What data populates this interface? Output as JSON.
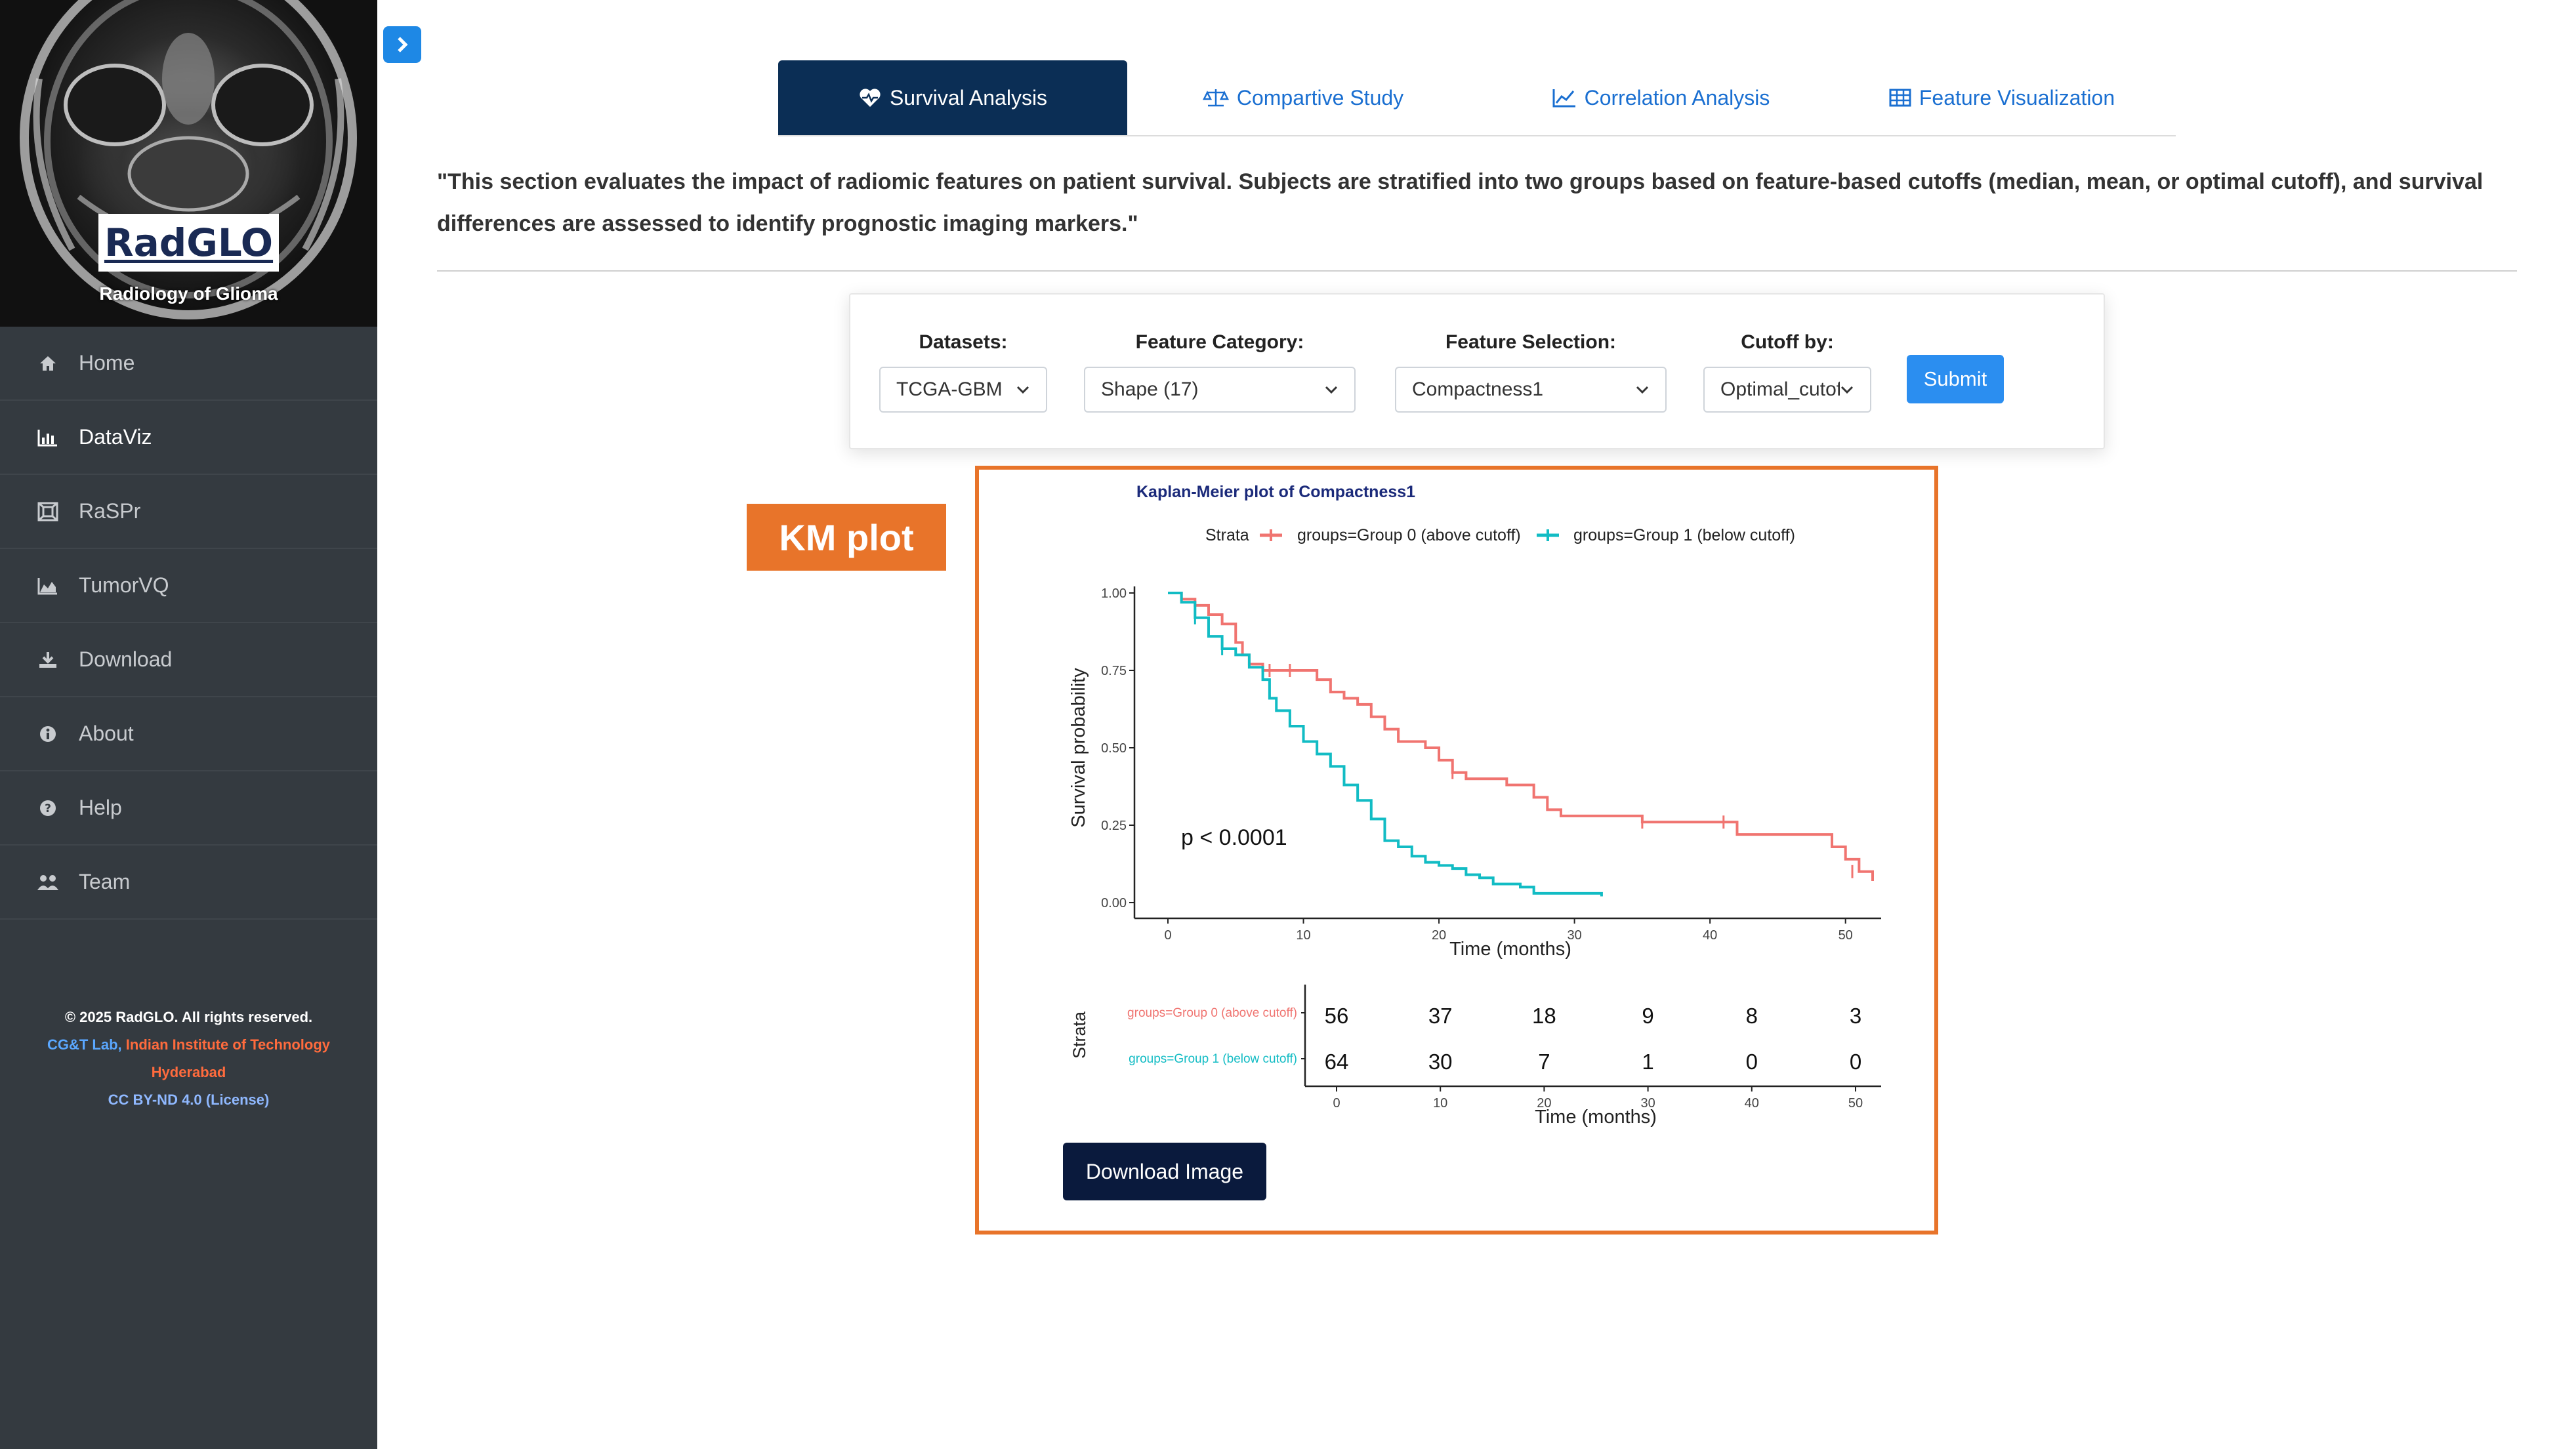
{
  "sidebar": {
    "logo": "RadGLO",
    "logo_subtitle": "Radiology of Glioma",
    "items": [
      {
        "label": "Home",
        "icon": "home-icon"
      },
      {
        "label": "DataViz",
        "icon": "bar-chart-icon",
        "active": true
      },
      {
        "label": "RaSPr",
        "icon": "grid-icon"
      },
      {
        "label": "TumorVQ",
        "icon": "area-chart-icon"
      },
      {
        "label": "Download",
        "icon": "download-icon"
      },
      {
        "label": "About",
        "icon": "info-icon"
      },
      {
        "label": "Help",
        "icon": "help-icon"
      },
      {
        "label": "Team",
        "icon": "team-icon"
      }
    ],
    "footer": {
      "copyright": "© 2025 RadGLO. All rights reserved.",
      "lab": "CG&T Lab,",
      "institute_line1": "Indian Institute of Technology",
      "institute_line2": "Hyderabad",
      "license": "CC BY-ND 4.0 (License)"
    }
  },
  "tabs": [
    {
      "label": "Survival Analysis",
      "icon": "heartbeat-icon",
      "active": true
    },
    {
      "label": "Compartive Study",
      "icon": "balance-scale-icon"
    },
    {
      "label": "Correlation Analysis",
      "icon": "line-chart-icon"
    },
    {
      "label": "Feature Visualization",
      "icon": "table-icon"
    }
  ],
  "intro_text": "\"This section evaluates the impact of radiomic features on patient survival. Subjects are stratified into two groups based on feature-based cutoffs (median, mean, or optimal cutoff), and survival differences are assessed to identify prognostic imaging markers.\"",
  "filters": {
    "datasets": {
      "label": "Datasets:",
      "value": "TCGA-GBM"
    },
    "category": {
      "label": "Feature Category:",
      "value": "Shape (17)"
    },
    "selection": {
      "label": "Feature Selection:",
      "value": "Compactness1"
    },
    "cutoff": {
      "label": "Cutoff by:",
      "value": "Optimal_cutoff"
    },
    "submit_label": "Submit"
  },
  "annotation_tag": "KM plot",
  "download_label": "Download Image",
  "colors": {
    "group0": "#f07470",
    "group1": "#12bcc4",
    "accent": "#e8742a"
  },
  "chart_data": {
    "type": "line",
    "title": "Kaplan-Meier plot of Compactness1",
    "legend_title": "Strata",
    "xlabel": "Time (months)",
    "ylabel": "Survival probability",
    "xlim": [
      0,
      52
    ],
    "ylim": [
      0,
      1
    ],
    "x_ticks": [
      0,
      10,
      20,
      30,
      40,
      50
    ],
    "y_ticks": [
      "0.00",
      "0.25",
      "0.50",
      "0.75",
      "1.00"
    ],
    "annotation": "p < 0.0001",
    "series": [
      {
        "name": "groups=Group 0 (above cutoff)",
        "points": [
          [
            0,
            1
          ],
          [
            1,
            0.98
          ],
          [
            2,
            0.96
          ],
          [
            3,
            0.93
          ],
          [
            4,
            0.9
          ],
          [
            5,
            0.84
          ],
          [
            5.5,
            0.8
          ],
          [
            6,
            0.77
          ],
          [
            7,
            0.75
          ],
          [
            10,
            0.75
          ],
          [
            11,
            0.72
          ],
          [
            12,
            0.68
          ],
          [
            13,
            0.66
          ],
          [
            14,
            0.64
          ],
          [
            15,
            0.6
          ],
          [
            16,
            0.56
          ],
          [
            17,
            0.52
          ],
          [
            19,
            0.5
          ],
          [
            20,
            0.46
          ],
          [
            21,
            0.42
          ],
          [
            22,
            0.4
          ],
          [
            25,
            0.38
          ],
          [
            27,
            0.34
          ],
          [
            28,
            0.3
          ],
          [
            29,
            0.28
          ],
          [
            34,
            0.28
          ],
          [
            35,
            0.26
          ],
          [
            41,
            0.26
          ],
          [
            42,
            0.22
          ],
          [
            48,
            0.22
          ],
          [
            49,
            0.18
          ],
          [
            50,
            0.14
          ],
          [
            51,
            0.1
          ],
          [
            52,
            0.07
          ]
        ]
      },
      {
        "name": "groups=Group 1 (below cutoff)",
        "points": [
          [
            0,
            1
          ],
          [
            1,
            0.97
          ],
          [
            2,
            0.92
          ],
          [
            3,
            0.86
          ],
          [
            4,
            0.82
          ],
          [
            5,
            0.8
          ],
          [
            6,
            0.76
          ],
          [
            7,
            0.72
          ],
          [
            7.5,
            0.66
          ],
          [
            8,
            0.62
          ],
          [
            9,
            0.57
          ],
          [
            10,
            0.52
          ],
          [
            11,
            0.48
          ],
          [
            12,
            0.44
          ],
          [
            13,
            0.38
          ],
          [
            14,
            0.33
          ],
          [
            15,
            0.27
          ],
          [
            16,
            0.2
          ],
          [
            17,
            0.18
          ],
          [
            18,
            0.15
          ],
          [
            19,
            0.13
          ],
          [
            20,
            0.12
          ],
          [
            21,
            0.11
          ],
          [
            22,
            0.09
          ],
          [
            23,
            0.08
          ],
          [
            24,
            0.06
          ],
          [
            26,
            0.05
          ],
          [
            27,
            0.03
          ],
          [
            30,
            0.03
          ],
          [
            32,
            0.02
          ]
        ]
      }
    ],
    "risk_table": {
      "title": "Strata",
      "xlabel": "Time (months)",
      "times": [
        0,
        10,
        20,
        30,
        40,
        50
      ],
      "rows": [
        {
          "name": "groups=Group 0 (above cutoff)",
          "counts": [
            "56",
            "37",
            "18",
            "9",
            "8",
            "3"
          ]
        },
        {
          "name": "groups=Group 1 (below cutoff)",
          "counts": [
            "64",
            "30",
            "7",
            "1",
            "0",
            "0"
          ]
        }
      ]
    }
  }
}
